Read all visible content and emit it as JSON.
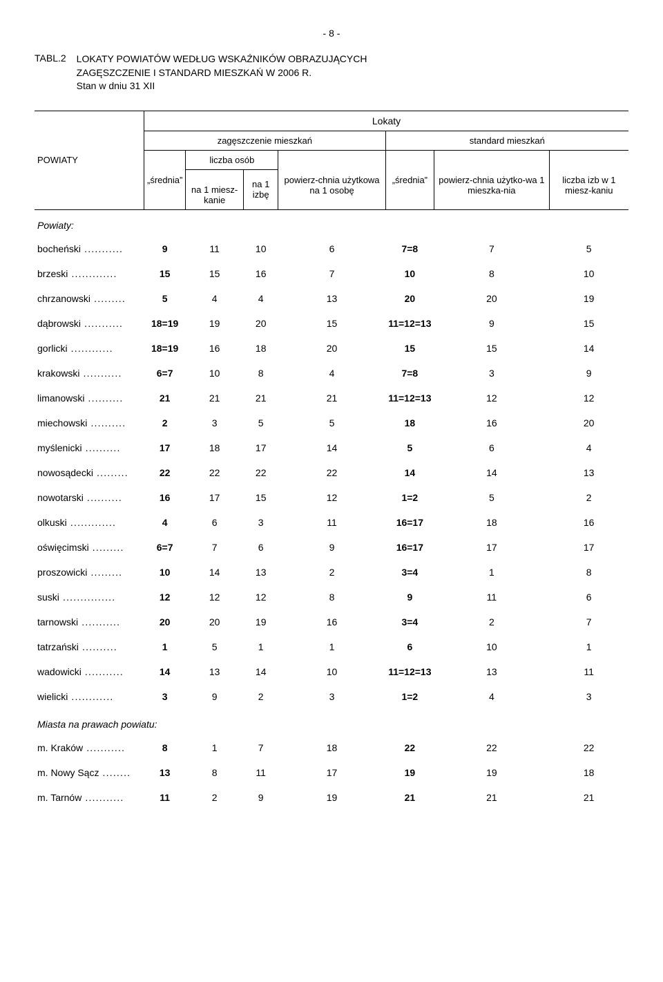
{
  "page_number": "- 8 -",
  "table_label": "TABL.2",
  "title_line1": "LOKATY POWIATÓW WEDŁUG WSKAŹNIKÓW OBRAZUJĄCYCH",
  "title_line2": "ZAGĘSZCZENIE I STANDARD MIESZKAŃ W 2006 R.",
  "title_line3": "Stan w dniu 31 XII",
  "header": {
    "lokaty": "Lokaty",
    "zageszczenie": "zagęszczenie mieszkań",
    "standard": "standard mieszkań",
    "powiaty": "POWIATY",
    "srednia": "„średnia”",
    "liczba_osob": "liczba osób",
    "na1_mieszkanie": "na 1 miesz-kanie",
    "na1_izbe": "na 1 izbę",
    "powierzchnia_osobe": "powierz-chnia użytkowa na 1 osobę",
    "powierzchnia_mieszkania": "powierz-chnia użytko-wa 1 mieszka-nia",
    "liczba_izb": "liczba izb w 1 miesz-kaniu"
  },
  "section_powiaty": "Powiaty:",
  "section_miasta": "Miasta na prawach powiatu:",
  "rows_powiaty": [
    {
      "label": "bocheński",
      "v": [
        "9",
        "11",
        "10",
        "6",
        "7=8",
        "7",
        "5"
      ]
    },
    {
      "label": "brzeski",
      "v": [
        "15",
        "15",
        "16",
        "7",
        "10",
        "8",
        "10"
      ]
    },
    {
      "label": "chrzanowski",
      "v": [
        "5",
        "4",
        "4",
        "13",
        "20",
        "20",
        "19"
      ]
    },
    {
      "label": "dąbrowski",
      "v": [
        "18=19",
        "19",
        "20",
        "15",
        "11=12=13",
        "9",
        "15"
      ]
    },
    {
      "label": "gorlicki",
      "v": [
        "18=19",
        "16",
        "18",
        "20",
        "15",
        "15",
        "14"
      ]
    },
    {
      "label": "krakowski",
      "v": [
        "6=7",
        "10",
        "8",
        "4",
        "7=8",
        "3",
        "9"
      ]
    },
    {
      "label": "limanowski",
      "v": [
        "21",
        "21",
        "21",
        "21",
        "11=12=13",
        "12",
        "12"
      ]
    },
    {
      "label": "miechowski",
      "v": [
        "2",
        "3",
        "5",
        "5",
        "18",
        "16",
        "20"
      ]
    },
    {
      "label": "myślenicki",
      "v": [
        "17",
        "18",
        "17",
        "14",
        "5",
        "6",
        "4"
      ]
    },
    {
      "label": "nowosądecki",
      "v": [
        "22",
        "22",
        "22",
        "22",
        "14",
        "14",
        "13"
      ]
    },
    {
      "label": "nowotarski",
      "v": [
        "16",
        "17",
        "15",
        "12",
        "1=2",
        "5",
        "2"
      ]
    },
    {
      "label": "olkuski",
      "v": [
        "4",
        "6",
        "3",
        "11",
        "16=17",
        "18",
        "16"
      ]
    },
    {
      "label": "oświęcimski",
      "v": [
        "6=7",
        "7",
        "6",
        "9",
        "16=17",
        "17",
        "17"
      ]
    },
    {
      "label": "proszowicki",
      "v": [
        "10",
        "14",
        "13",
        "2",
        "3=4",
        "1",
        "8"
      ]
    },
    {
      "label": "suski",
      "v": [
        "12",
        "12",
        "12",
        "8",
        "9",
        "11",
        "6"
      ]
    },
    {
      "label": "tarnowski",
      "v": [
        "20",
        "20",
        "19",
        "16",
        "3=4",
        "2",
        "7"
      ]
    },
    {
      "label": "tatrzański",
      "v": [
        "1",
        "5",
        "1",
        "1",
        "6",
        "10",
        "1"
      ]
    },
    {
      "label": "wadowicki",
      "v": [
        "14",
        "13",
        "14",
        "10",
        "11=12=13",
        "13",
        "11"
      ]
    },
    {
      "label": "wielicki",
      "v": [
        "3",
        "9",
        "2",
        "3",
        "1=2",
        "4",
        "3"
      ]
    }
  ],
  "rows_miasta": [
    {
      "label": "m. Kraków",
      "v": [
        "8",
        "1",
        "7",
        "18",
        "22",
        "22",
        "22"
      ]
    },
    {
      "label": "m. Nowy Sącz",
      "v": [
        "13",
        "8",
        "11",
        "17",
        "19",
        "19",
        "18"
      ]
    },
    {
      "label": "m. Tarnów",
      "v": [
        "11",
        "2",
        "9",
        "19",
        "21",
        "21",
        "21"
      ]
    }
  ]
}
